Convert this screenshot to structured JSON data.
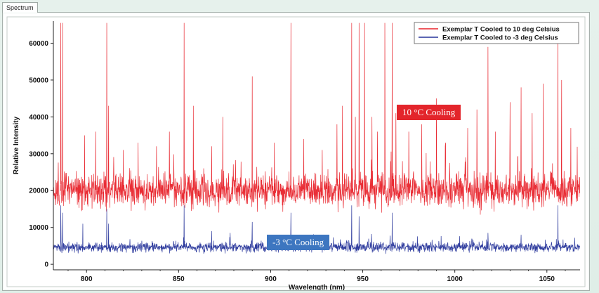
{
  "tab": {
    "label": "Spectrum"
  },
  "colors": {
    "series_red": "#e8222a",
    "series_blue": "#26349a",
    "annot_red": "#e3252b",
    "annot_blue": "#3d76c0"
  },
  "annotations": {
    "red": "10 °C Cooling",
    "blue": "-3 °C Cooling"
  },
  "chart_data": {
    "type": "line",
    "title": "",
    "xlabel": "Wavelength (nm)",
    "ylabel": "Relative Intensity",
    "xlim": [
      782,
      1068
    ],
    "ylim": [
      -1500,
      66000
    ],
    "xticks": [
      800,
      850,
      900,
      950,
      1000,
      1050
    ],
    "yticks": [
      0,
      10000,
      20000,
      30000,
      40000,
      50000,
      60000
    ],
    "legend_position": "top-right",
    "grid": false,
    "series": [
      {
        "name": "Exemplar T Cooled to 10 deg Celsius",
        "baseline": 20000,
        "noise_range": [
          14000,
          28000
        ],
        "peaks": [
          [
            786,
            65500
          ],
          [
            787,
            65500
          ],
          [
            799,
            35000
          ],
          [
            805,
            36000
          ],
          [
            811,
            65500
          ],
          [
            812,
            43000
          ],
          [
            820,
            31000
          ],
          [
            828,
            33000
          ],
          [
            838,
            32000
          ],
          [
            845,
            36000
          ],
          [
            853,
            65500
          ],
          [
            858,
            43000
          ],
          [
            868,
            32000
          ],
          [
            874,
            40000
          ],
          [
            890,
            51000
          ],
          [
            902,
            33000
          ],
          [
            911,
            65500
          ],
          [
            918,
            34000
          ],
          [
            928,
            31000
          ],
          [
            936,
            38000
          ],
          [
            939,
            43000
          ],
          [
            944,
            65500
          ],
          [
            946,
            40000
          ],
          [
            948,
            65500
          ],
          [
            951,
            65500
          ],
          [
            955,
            40000
          ],
          [
            958,
            36000
          ],
          [
            962,
            65500
          ],
          [
            966,
            65500
          ],
          [
            968,
            41000
          ],
          [
            975,
            36000
          ],
          [
            982,
            38000
          ],
          [
            990,
            45000
          ],
          [
            995,
            33000
          ],
          [
            1007,
            37000
          ],
          [
            1012,
            42000
          ],
          [
            1018,
            59000
          ],
          [
            1022,
            36000
          ],
          [
            1030,
            44000
          ],
          [
            1036,
            48000
          ],
          [
            1042,
            41000
          ],
          [
            1048,
            49000
          ],
          [
            1056,
            65500
          ],
          [
            1058,
            50000
          ],
          [
            1063,
            37000
          ]
        ]
      },
      {
        "name": "Exemplar T Cooled to -3 deg Celsius",
        "baseline": 4600,
        "noise_range": [
          2800,
          7000
        ],
        "peaks": [
          [
            786,
            16000
          ],
          [
            787,
            14000
          ],
          [
            798,
            11000
          ],
          [
            811,
            15000
          ],
          [
            812,
            11000
          ],
          [
            853,
            16000
          ],
          [
            868,
            9000
          ],
          [
            878,
            8500
          ],
          [
            890,
            11500
          ],
          [
            911,
            14000
          ],
          [
            944,
            16000
          ],
          [
            948,
            13000
          ],
          [
            966,
            14000
          ],
          [
            1018,
            8500
          ],
          [
            1036,
            8000
          ],
          [
            1056,
            16000
          ]
        ]
      }
    ]
  }
}
